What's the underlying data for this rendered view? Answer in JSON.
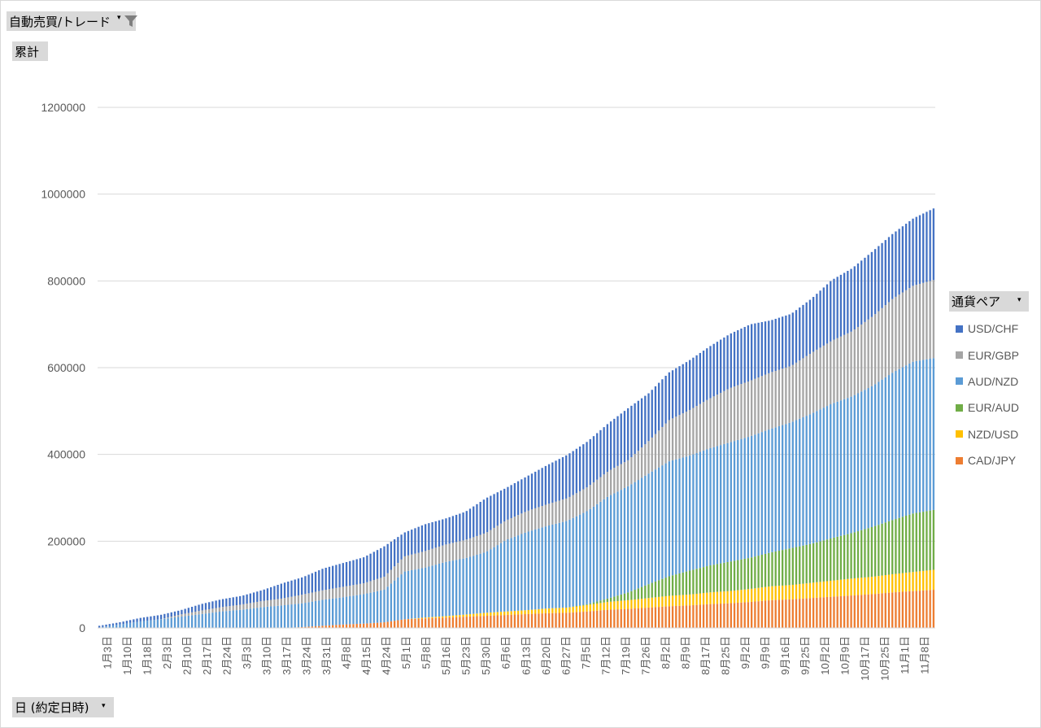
{
  "filter": {
    "label": "自動売買/トレード"
  },
  "series_label": "累計",
  "axis_field": "日 (約定日時)",
  "legend_title": "通貨ペア",
  "chart_data": {
    "type": "bar",
    "stacked": true,
    "title": "",
    "xlabel": "",
    "ylabel": "",
    "ylim": [
      0,
      1200000
    ],
    "yticks": [
      "0",
      "200000",
      "400000",
      "600000",
      "800000",
      "1000000",
      "1200000"
    ],
    "grid": true,
    "legend_position": "right",
    "categories": [
      "1月3日",
      "1月10日",
      "1月18日",
      "2月3日",
      "2月10日",
      "2月17日",
      "2月24日",
      "3月3日",
      "3月10日",
      "3月17日",
      "3月24日",
      "3月31日",
      "4月8日",
      "4月15日",
      "4月24日",
      "5月1日",
      "5月8日",
      "5月16日",
      "5月23日",
      "5月30日",
      "6月6日",
      "6月13日",
      "6月20日",
      "6月27日",
      "7月5日",
      "7月12日",
      "7月19日",
      "7月26日",
      "8月2日",
      "8月9日",
      "8月17日",
      "8月25日",
      "9月2日",
      "9月9日",
      "9月16日",
      "9月25日",
      "10月2日",
      "10月9日",
      "10月17日",
      "10月25日",
      "11月1日",
      "11月8日"
    ],
    "series": [
      {
        "name": "CAD/JPY",
        "color": "#ED7D31",
        "values": [
          0,
          0,
          0,
          0,
          0,
          0,
          0,
          0,
          0,
          0,
          2000,
          5000,
          8000,
          10000,
          13000,
          20000,
          22000,
          24000,
          26000,
          28000,
          30000,
          32000,
          34000,
          35000,
          38000,
          42000,
          44000,
          47000,
          50000,
          52000,
          55000,
          57000,
          60000,
          64000,
          66000,
          69000,
          72000,
          75000,
          78000,
          82000,
          85000,
          88000
        ]
      },
      {
        "name": "NZD/USD",
        "color": "#FFC000",
        "values": [
          0,
          0,
          0,
          0,
          0,
          0,
          0,
          0,
          0,
          0,
          0,
          0,
          0,
          0,
          0,
          0,
          2000,
          3000,
          5000,
          7000,
          8000,
          9000,
          11000,
          12000,
          15000,
          18000,
          20000,
          22000,
          24000,
          25000,
          27000,
          28000,
          30000,
          32000,
          33000,
          35000,
          37000,
          39000,
          40000,
          42000,
          44000,
          46000
        ]
      },
      {
        "name": "EUR/AUD",
        "color": "#70AD47",
        "values": [
          0,
          0,
          0,
          0,
          0,
          0,
          0,
          0,
          0,
          0,
          0,
          0,
          0,
          0,
          0,
          0,
          0,
          0,
          0,
          0,
          0,
          0,
          0,
          0,
          2000,
          8000,
          18000,
          32000,
          45000,
          55000,
          62000,
          68000,
          72000,
          78000,
          85000,
          90000,
          98000,
          105000,
          115000,
          125000,
          135000,
          138000
        ]
      },
      {
        "name": "AUD/NZD",
        "color": "#5B9BD5",
        "values": [
          1000,
          8000,
          15000,
          20000,
          26000,
          32000,
          38000,
          42000,
          48000,
          52000,
          55000,
          60000,
          63000,
          68000,
          75000,
          110000,
          115000,
          125000,
          130000,
          140000,
          165000,
          180000,
          190000,
          200000,
          215000,
          235000,
          245000,
          255000,
          265000,
          265000,
          270000,
          275000,
          280000,
          285000,
          290000,
          300000,
          310000,
          315000,
          325000,
          340000,
          350000,
          350000
        ]
      },
      {
        "name": "EUR/GBP",
        "color": "#A5A5A5",
        "values": [
          0,
          0,
          0,
          0,
          5000,
          8000,
          10000,
          12000,
          14000,
          16000,
          20000,
          22000,
          24000,
          25000,
          30000,
          35000,
          38000,
          40000,
          42000,
          44000,
          45000,
          48000,
          50000,
          52000,
          55000,
          58000,
          60000,
          75000,
          95000,
          105000,
          115000,
          125000,
          128000,
          130000,
          130000,
          140000,
          145000,
          150000,
          160000,
          170000,
          175000,
          180000
        ]
      },
      {
        "name": "USD/CHF",
        "color": "#4472C4",
        "values": [
          4000,
          5000,
          8000,
          10000,
          10000,
          15000,
          18000,
          20000,
          25000,
          35000,
          40000,
          50000,
          55000,
          60000,
          70000,
          55000,
          62000,
          60000,
          65000,
          80000,
          75000,
          80000,
          90000,
          100000,
          105000,
          110000,
          120000,
          110000,
          110000,
          115000,
          120000,
          125000,
          130000,
          120000,
          120000,
          125000,
          140000,
          145000,
          150000,
          150000,
          155000,
          165000
        ]
      }
    ]
  }
}
